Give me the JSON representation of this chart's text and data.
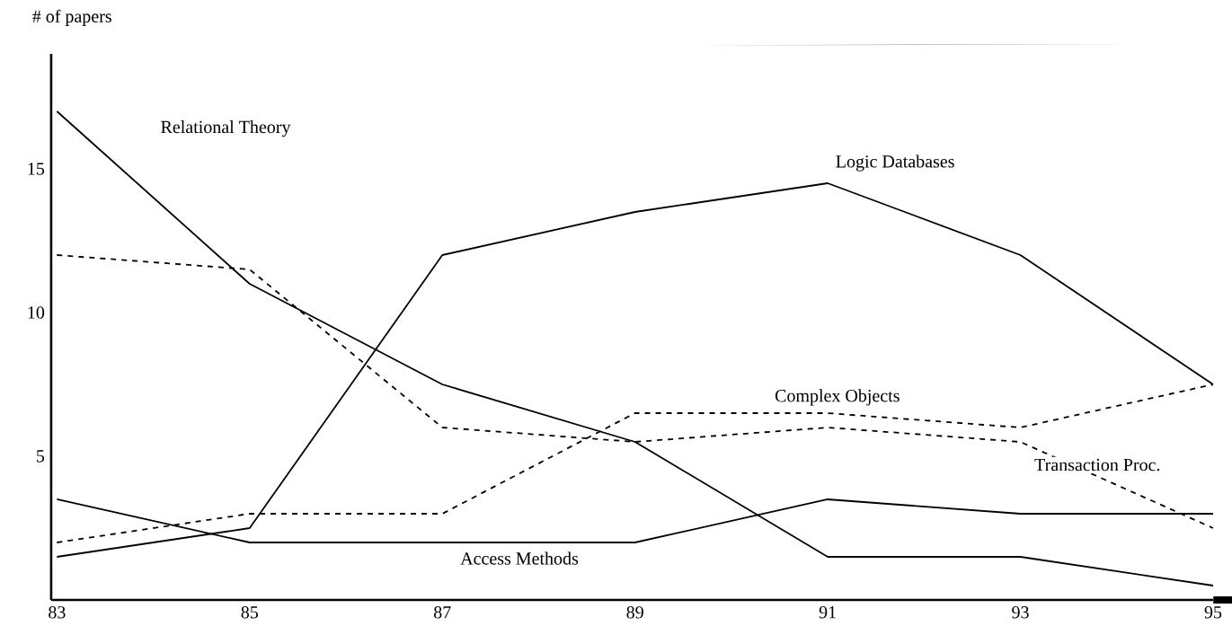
{
  "chart_data": {
    "type": "line",
    "ylabel": "# of papers",
    "x": [
      83,
      85,
      87,
      89,
      91,
      93,
      95
    ],
    "xlim": [
      82.94,
      95
    ],
    "xticks": [
      83,
      85,
      87,
      89,
      91,
      93,
      95
    ],
    "ylim": [
      0,
      19
    ],
    "yticks": [
      5,
      10,
      15
    ],
    "grid": false,
    "legend": false,
    "marker": "none",
    "series": [
      {
        "name": "Relational Theory",
        "color": "#000000",
        "line_style": "solid",
        "values": [
          17,
          11,
          7.5,
          5.5,
          1.5,
          1.5,
          0.5
        ]
      },
      {
        "name": "Logic Databases",
        "color": "#000000",
        "line_style": "solid",
        "values": [
          1.5,
          2.5,
          12,
          13.5,
          14.5,
          12,
          7.5
        ]
      },
      {
        "name": "Complex Objects",
        "color": "#000000",
        "line_style": "dashed",
        "values": [
          2,
          3,
          3,
          6.5,
          6.5,
          6,
          7.5
        ]
      },
      {
        "name": "Transaction Proc.",
        "color": "#000000",
        "line_style": "dashed",
        "values": [
          12,
          11.5,
          6,
          5.5,
          6,
          5.5,
          2.5
        ]
      },
      {
        "name": "Access Methods",
        "color": "#000000",
        "line_style": "solid",
        "values": [
          3.5,
          2,
          2,
          2,
          3.5,
          3,
          3
        ]
      }
    ]
  }
}
